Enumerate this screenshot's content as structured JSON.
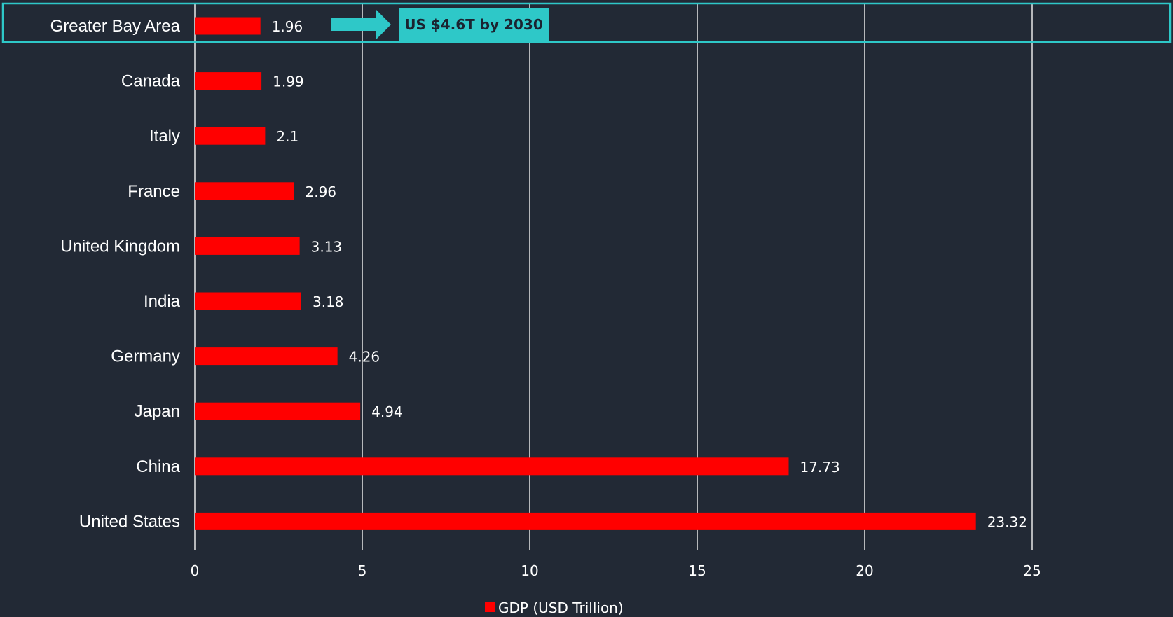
{
  "chart_data": {
    "type": "bar",
    "orientation": "horizontal",
    "title": "",
    "xlabel": "",
    "ylabel": "",
    "categories": [
      "Greater Bay Area",
      "Canada",
      "Italy",
      "France",
      "United Kingdom",
      "India",
      "Germany",
      "Japan",
      "China",
      "United States"
    ],
    "series": [
      {
        "name": "GDP (USD Trillion)",
        "values": [
          1.96,
          1.99,
          2.1,
          2.96,
          3.13,
          3.18,
          4.26,
          4.94,
          17.73,
          23.32
        ],
        "labels": [
          "1.96",
          "1.99",
          "2.1",
          "2.96",
          "3.13",
          "3.18",
          "4.26",
          "4.94",
          "17.73",
          "23.32"
        ],
        "color": "#ff0000"
      }
    ],
    "xlim": [
      0,
      29
    ],
    "xticks": [
      0,
      5,
      10,
      15,
      20,
      25
    ],
    "xtick_labels": [
      "0",
      "5",
      "10",
      "15",
      "20",
      "25"
    ],
    "grid": true,
    "legend_position": "bottom-center",
    "annotation": {
      "text": "US $4.6T by 2030",
      "target_category": "Greater Bay Area",
      "style": "arrow-callout",
      "color": "#2ec8c8"
    },
    "highlight_category": "Greater Bay Area"
  },
  "colors": {
    "background": "#222935",
    "bar": "#ff0000",
    "grid": "#e8e8e8",
    "text": "#ffffff",
    "accent": "#2ec8c8"
  }
}
